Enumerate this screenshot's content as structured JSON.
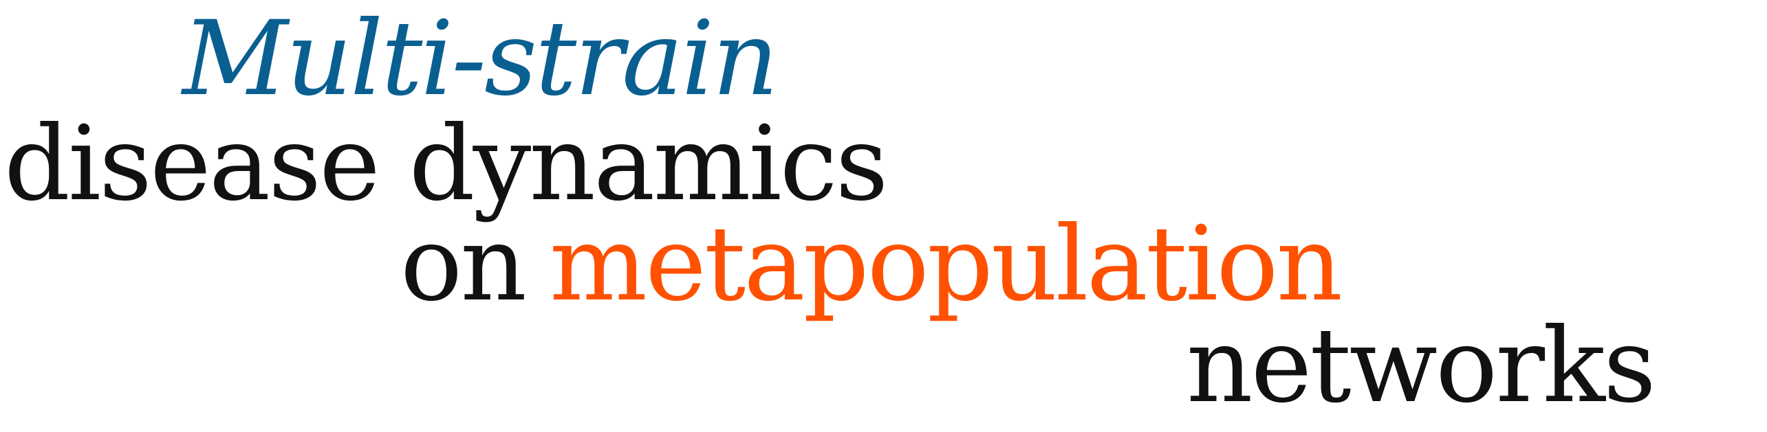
{
  "title": {
    "line1": "Multi-strain",
    "line2": "disease dynamics",
    "line3_word1": "on",
    "line3_word2": "metapopulation",
    "line4": "networks"
  },
  "colors": {
    "blue": "#0a5f91",
    "black": "#111111",
    "orange": "#ff5100"
  }
}
